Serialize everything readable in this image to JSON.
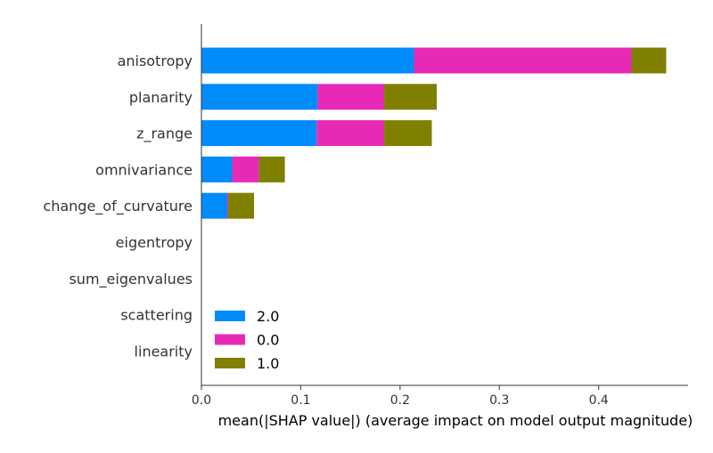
{
  "chart_data": {
    "type": "bar",
    "orientation": "horizontal",
    "stacked": true,
    "title": "",
    "xlabel": "mean(|SHAP value|) (average impact on model output magnitude)",
    "ylabel": "",
    "xlim": [
      0,
      0.49
    ],
    "xticks": [
      "0.0",
      "0.1",
      "0.2",
      "0.3",
      "0.4"
    ],
    "grid": false,
    "legend_position": "lower-left",
    "categories": [
      "anisotropy",
      "planarity",
      "z_range",
      "omnivariance",
      "change_of_curvature",
      "eigentropy",
      "sum_eigenvalues",
      "scattering",
      "linearity"
    ],
    "series": [
      {
        "name": "2.0",
        "color": "#008bfb",
        "values": [
          0.214,
          0.117,
          0.116,
          0.031,
          0.026,
          0.0,
          0.0,
          0.0,
          0.0
        ]
      },
      {
        "name": "0.0",
        "color": "#e62ab6",
        "values": [
          0.219,
          0.067,
          0.068,
          0.027,
          0.001,
          0.0,
          0.0,
          0.0,
          0.0
        ]
      },
      {
        "name": "1.0",
        "color": "#808000",
        "values": [
          0.035,
          0.053,
          0.048,
          0.026,
          0.026,
          0.0,
          0.0,
          0.0,
          0.0
        ]
      }
    ]
  }
}
